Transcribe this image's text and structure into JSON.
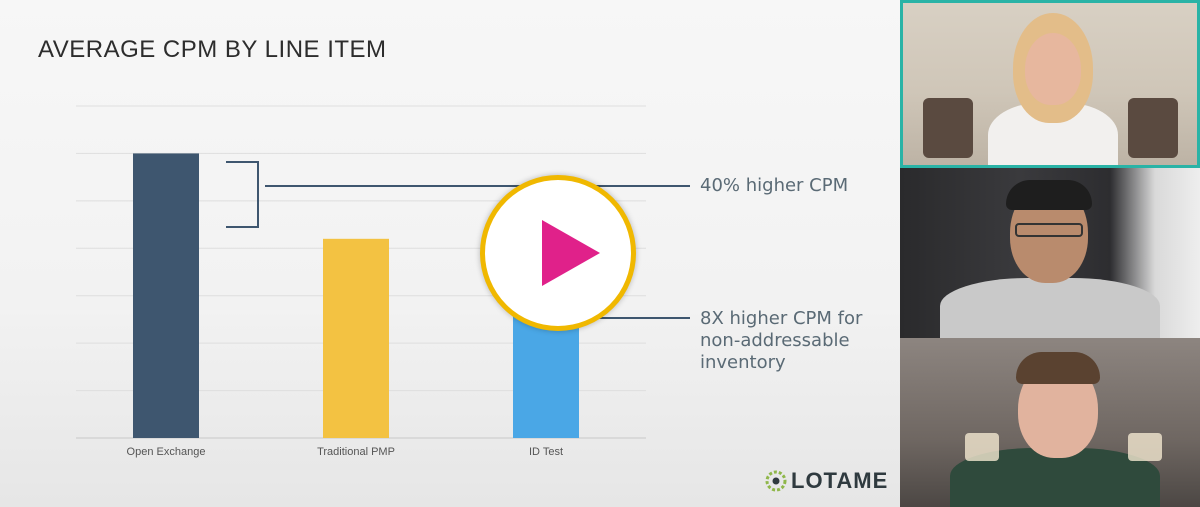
{
  "slide": {
    "title": "AVERAGE CPM BY LINE ITEM",
    "callouts": [
      "40% higher CPM",
      "8X higher CPM for non-addressable inventory"
    ],
    "logo_text": "LOTAME"
  },
  "chart_data": {
    "type": "bar",
    "title": "AVERAGE CPM BY LINE ITEM",
    "categories": [
      "Open Exchange",
      "Traditional PMP",
      "ID Test"
    ],
    "values": [
      6.0,
      4.2,
      2.6
    ],
    "colors": [
      "#3e566f",
      "#f3c242",
      "#4aa7e6"
    ],
    "ylim": [
      0,
      7
    ],
    "grid": true,
    "xlabel": "",
    "ylabel": ""
  },
  "video": {
    "play_button": {
      "accent": "#f0b800",
      "icon_color": "#e0218a"
    },
    "participant_highlight_color": "#2ab3a6"
  }
}
